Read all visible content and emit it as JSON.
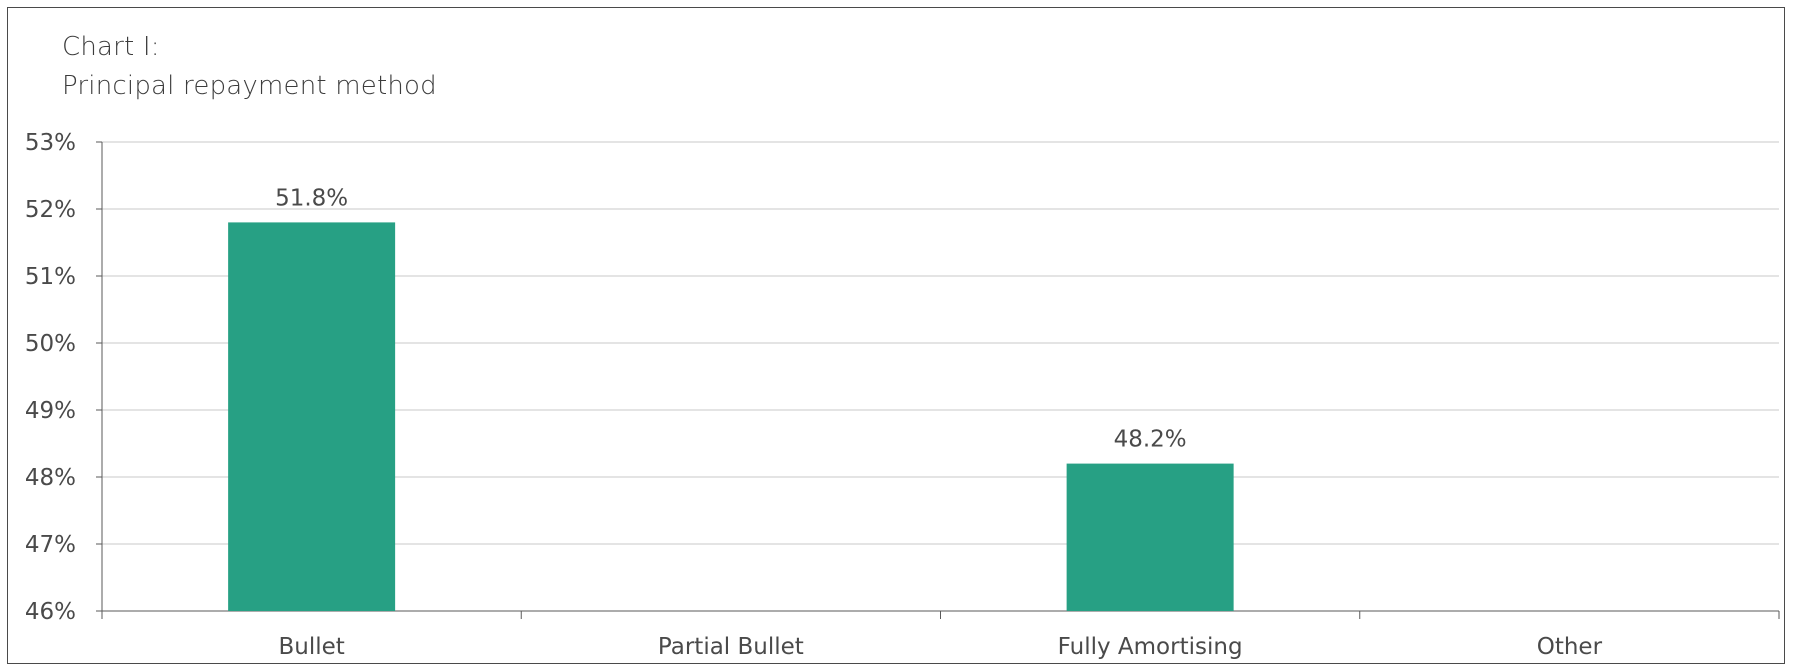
{
  "title_line1": "Chart I:",
  "title_line2": "Principal repayment method",
  "colors": {
    "bar": "#27a084",
    "grid": "#c8c8c8",
    "axis": "#5a5a5a",
    "text": "#4a4a4a"
  },
  "chart_data": {
    "type": "bar",
    "title": "Chart I: Principal repayment method",
    "categories": [
      "Bullet",
      "Partial Bullet",
      "Fully Amortising",
      "Other"
    ],
    "values": [
      51.8,
      null,
      48.2,
      null
    ],
    "data_labels": [
      "51.8%",
      "",
      "48.2%",
      ""
    ],
    "ylim": [
      46,
      53
    ],
    "yticks": [
      46,
      47,
      48,
      49,
      50,
      51,
      52,
      53
    ],
    "ytick_labels": [
      "46%",
      "47%",
      "48%",
      "49%",
      "50%",
      "51%",
      "52%",
      "53%"
    ],
    "xlabel": "",
    "ylabel": "",
    "grid": true,
    "legend": false
  }
}
